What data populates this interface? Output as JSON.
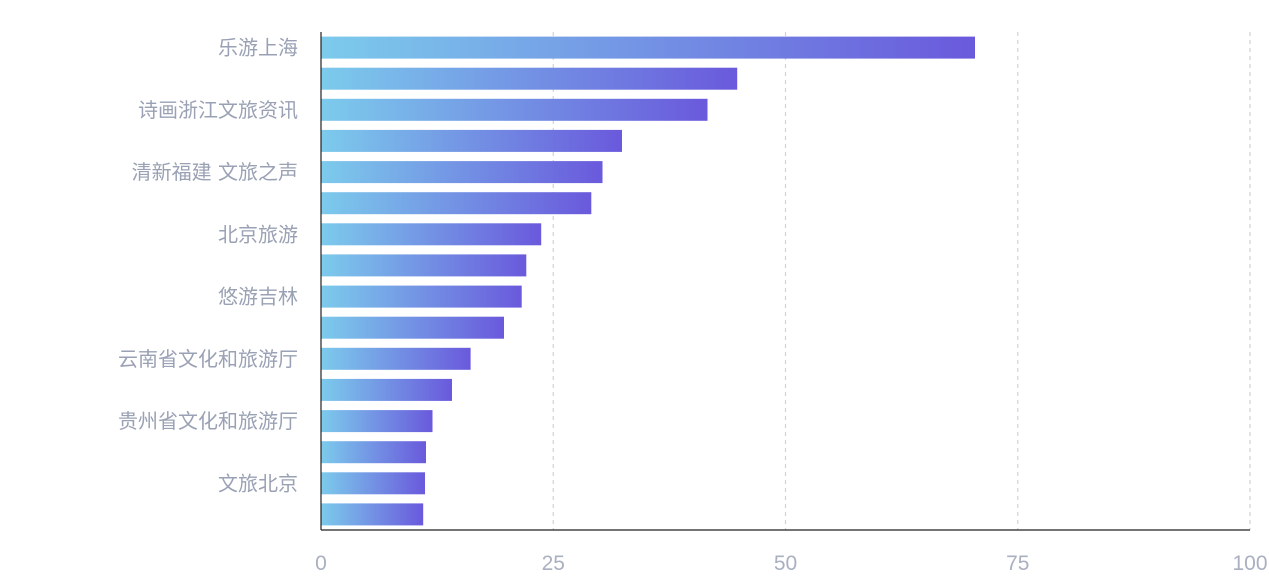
{
  "chart_data": {
    "type": "bar",
    "orientation": "horizontal",
    "categories": [
      "乐游上海",
      "",
      "诗画浙江文旅资讯",
      "",
      "清新福建 文旅之声",
      "",
      "北京旅游",
      "",
      "悠游吉林",
      "",
      "云南省文化和旅游厅",
      "",
      "贵州省文化和旅游厅",
      "",
      "文旅北京",
      ""
    ],
    "values": [
      70.4,
      44.8,
      41.6,
      32.4,
      30.3,
      29.1,
      23.7,
      22.1,
      21.6,
      19.7,
      16.1,
      14.1,
      12.0,
      11.3,
      11.2,
      11.0
    ],
    "xlim": [
      0,
      100
    ],
    "xticks": [
      "0",
      "25",
      "50",
      "75",
      "100"
    ],
    "xtick_values": [
      0,
      25,
      50,
      75,
      100
    ],
    "grid": "vertical-dashed",
    "gradient": [
      "#7ccbec",
      "#6a59dc"
    ],
    "title": "",
    "xlabel": "",
    "ylabel": ""
  }
}
